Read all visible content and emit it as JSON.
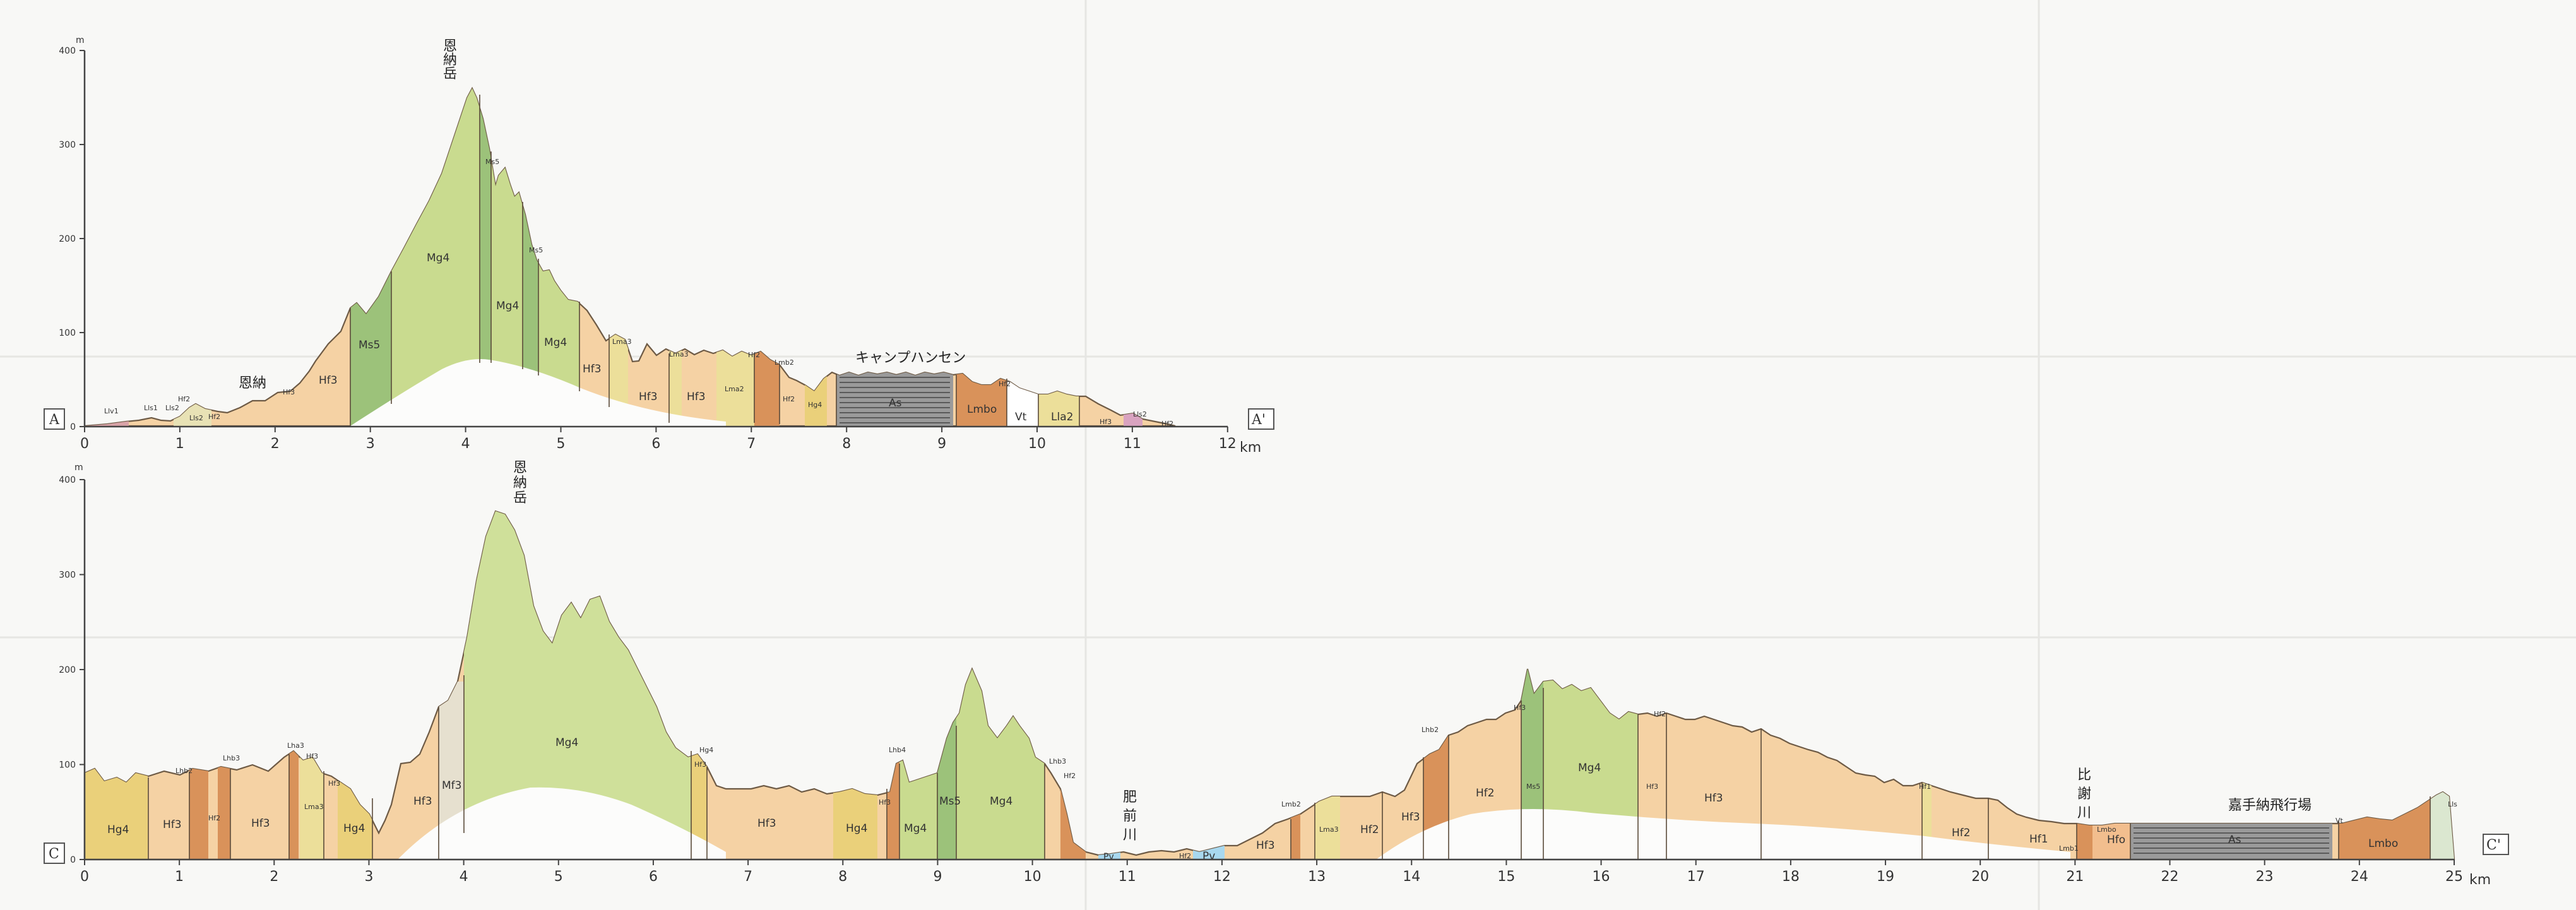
{
  "sectionA": {
    "start_label": "A",
    "end_label": "A'",
    "y_unit": "m",
    "km_unit": "km",
    "y_ticks": [
      "0",
      "100",
      "200",
      "300",
      "400"
    ],
    "x_ticks": [
      "0",
      "1",
      "2",
      "3",
      "4",
      "5",
      "6",
      "7",
      "8",
      "9",
      "10",
      "11",
      "12"
    ],
    "place_labels": {
      "onna": "恩納",
      "onnadake": "恩納岳",
      "camp_hansen": "キャンプハンセン"
    },
    "unit_labels": {
      "u1": "Llv1",
      "u2": "Lls1",
      "u3": "Lls2",
      "u4": "Hf2",
      "u5": "Lls2",
      "u6": "Hf2",
      "u7": "Hf3",
      "u8": "Hf3",
      "u9": "Ms5",
      "u10": "Mg4",
      "u11": "Ms5",
      "u12": "Mg4",
      "u13": "Ms5",
      "u14": "Mg4",
      "u15": "Hf3",
      "u16": "Lma3",
      "u17": "Hf3",
      "u18": "Lma3",
      "u19": "Hf3",
      "u20": "Lma2",
      "u21": "Hf2",
      "u22": "Lmb2",
      "u23": "Hf2",
      "u24": "Hg4",
      "u25": "As",
      "u26": "Lmbo",
      "u27": "Hf2",
      "u28": "Vt",
      "u29": "Lla2",
      "u30": "Hf3",
      "u31": "Lls2",
      "u32": "Hf2"
    }
  },
  "sectionC": {
    "start_label": "C",
    "end_label": "C'",
    "y_unit": "m",
    "km_unit": "km",
    "y_ticks": [
      "0",
      "100",
      "200",
      "300",
      "400"
    ],
    "x_ticks": [
      "0",
      "1",
      "2",
      "3",
      "4",
      "5",
      "6",
      "7",
      "8",
      "9",
      "10",
      "11",
      "12",
      "13",
      "14",
      "15",
      "16",
      "17",
      "18",
      "19",
      "20",
      "21",
      "22",
      "23",
      "24",
      "25"
    ],
    "place_labels": {
      "onnadake": "恩納岳",
      "hizen_river": "肥前川",
      "hija_river": "比謝川",
      "kadena": "嘉手納飛行場"
    },
    "unit_labels": {
      "u1": "Hg4",
      "u2": "Hf3",
      "u3": "Lhb2",
      "u4": "Hf2",
      "u5": "Hf3",
      "u6": "Lhb3",
      "u7": "Lha3",
      "u8": "Hf3",
      "u9": "Lma3",
      "u10": "Hf3",
      "u11": "Hg4",
      "u12": "Hf3",
      "u13": "Mf3",
      "u14": "Mg4",
      "u15": "Hg4",
      "u16": "Hf3",
      "u17": "Hf3",
      "u18": "Hg4",
      "u19": "Lhb4",
      "u20": "Hf3",
      "u21": "Mg4",
      "u22": "Ms5",
      "u23": "Mg4",
      "u24": "Lhb3",
      "u25": "Hf2",
      "u26": "Pv",
      "u27": "Hf2",
      "u28": "Pv",
      "u29": "Hf3",
      "u30": "Lmb2",
      "u31": "Lma3",
      "u32": "Hf2",
      "u33": "Hf3",
      "u34": "Lhb2",
      "u35": "Hf2",
      "u36": "Hf3",
      "u37": "Mg4",
      "u38": "Ms5",
      "u39": "Hf3",
      "u40": "Hf3",
      "u41": "Hf2",
      "u42": "Hf1",
      "u43": "Hf2",
      "u44": "Hf1",
      "u45": "Lmb1",
      "u46": "Lmbo",
      "u47": "Hfo",
      "u48": "As",
      "u49": "Vt",
      "u50": "Lmbo",
      "u51": "Lls"
    }
  }
}
